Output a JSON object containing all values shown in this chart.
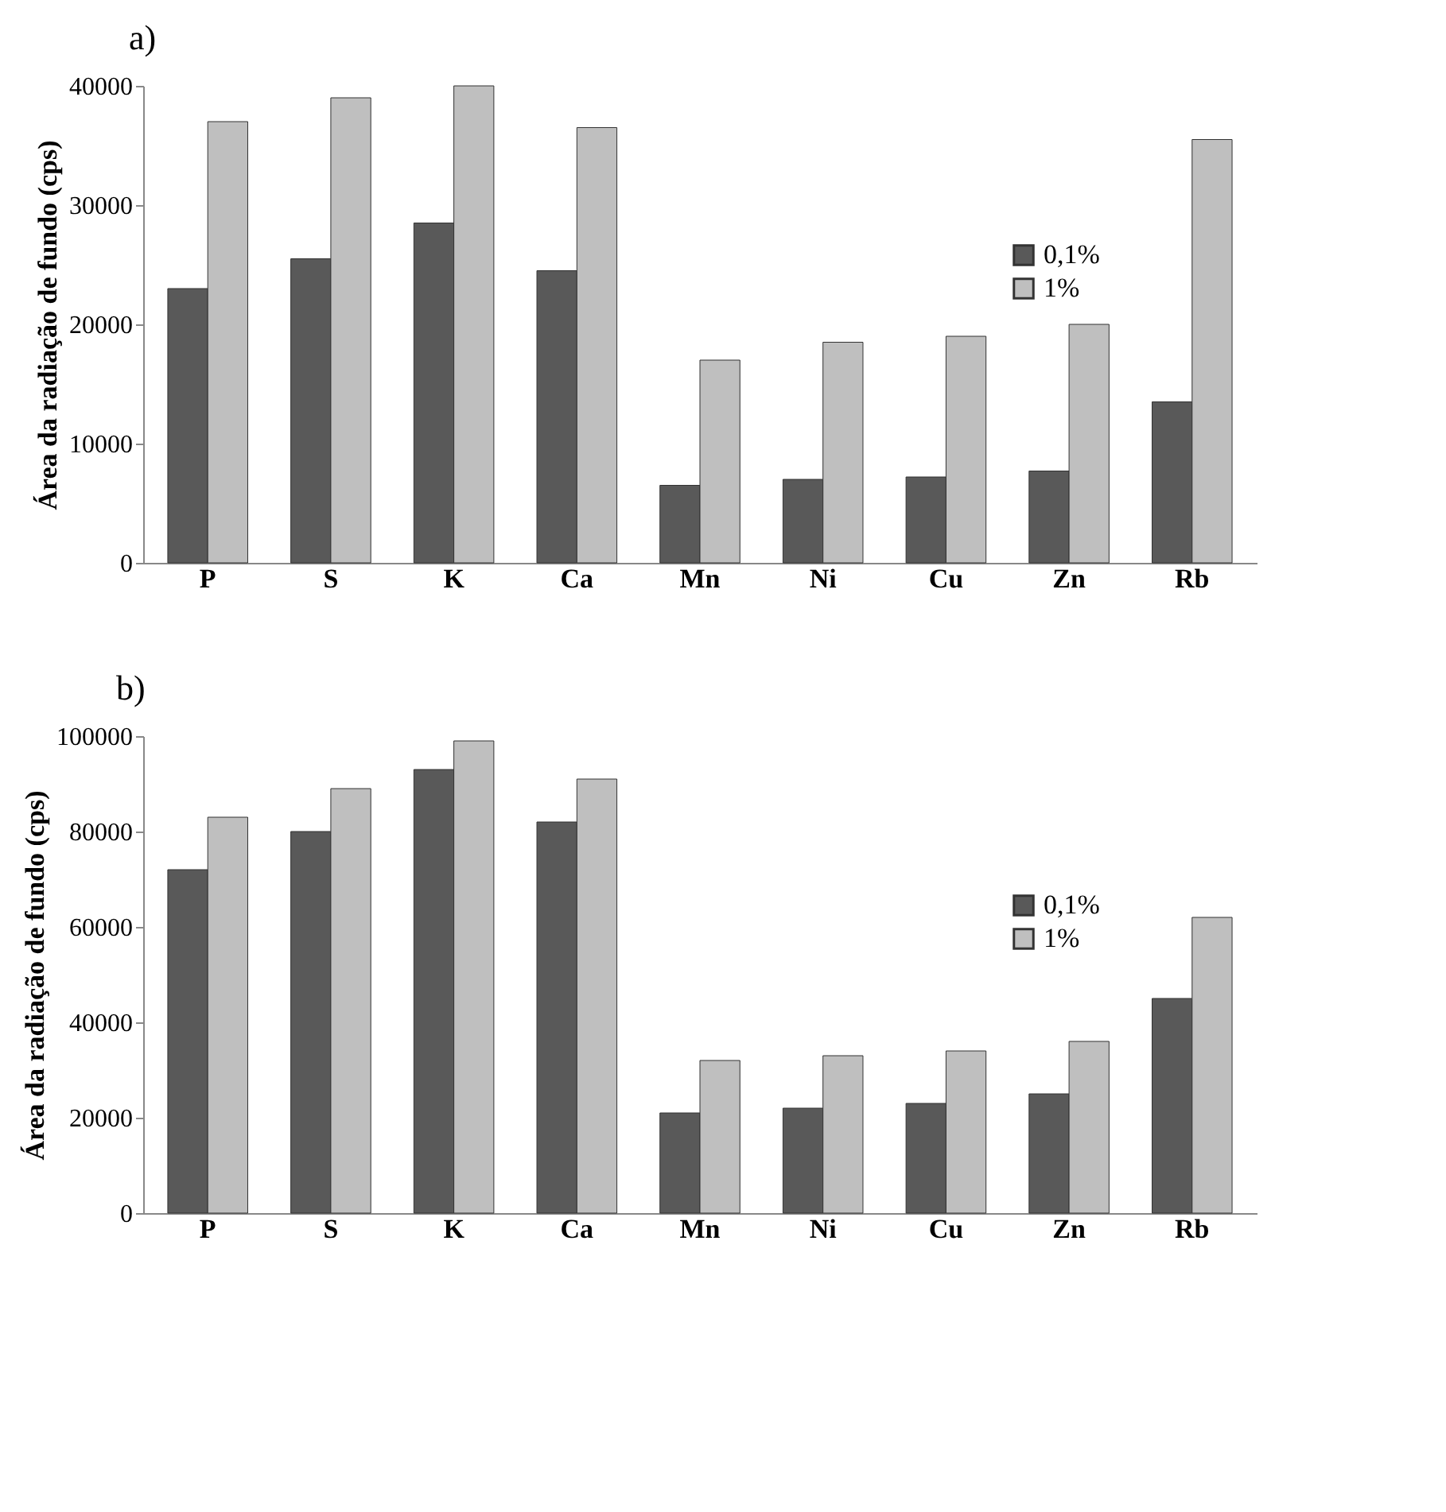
{
  "chart_data": [
    {
      "type": "bar",
      "title": "a)",
      "ylabel": "Área da radiação de fundo (cps)",
      "categories": [
        "P",
        "S",
        "K",
        "Ca",
        "Mn",
        "Ni",
        "Cu",
        "Zn",
        "Rb"
      ],
      "ylim": [
        0,
        40000
      ],
      "yticks": [
        0,
        10000,
        20000,
        30000,
        40000
      ],
      "legend": "top right",
      "series": [
        {
          "name": "0,1%",
          "color": "#595959",
          "values": [
            23000,
            25500,
            28500,
            24500,
            6500,
            7000,
            7200,
            7700,
            13500
          ]
        },
        {
          "name": "1%",
          "color": "#bfbfbf",
          "values": [
            37000,
            39000,
            40000,
            36500,
            17000,
            18500,
            19000,
            20000,
            35500
          ]
        }
      ]
    },
    {
      "type": "bar",
      "title": "b)",
      "ylabel": "Área da radiação de fundo (cps)",
      "categories": [
        "P",
        "S",
        "K",
        "Ca",
        "Mn",
        "Ni",
        "Cu",
        "Zn",
        "Rb"
      ],
      "ylim": [
        0,
        100000
      ],
      "yticks": [
        0,
        20000,
        40000,
        60000,
        80000,
        100000
      ],
      "legend": "top right",
      "series": [
        {
          "name": "0,1%",
          "color": "#595959",
          "values": [
            72000,
            80000,
            93000,
            82000,
            21000,
            22000,
            23000,
            25000,
            45000
          ]
        },
        {
          "name": "1%",
          "color": "#bfbfbf",
          "values": [
            83000,
            89000,
            99000,
            91000,
            32000,
            33000,
            34000,
            36000,
            62000
          ]
        }
      ]
    }
  ]
}
